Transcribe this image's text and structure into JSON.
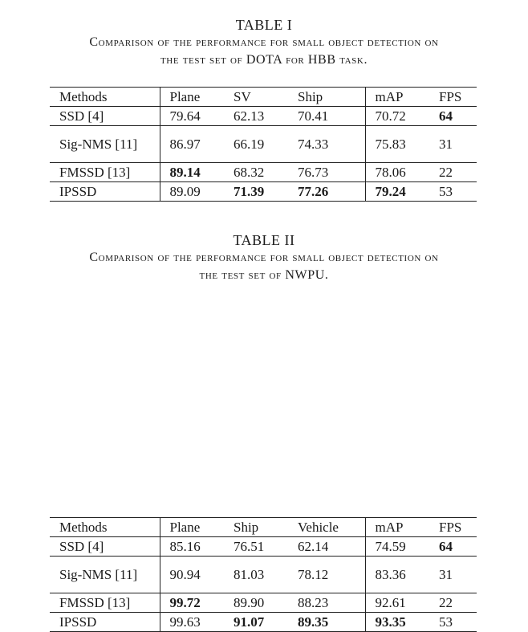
{
  "tables": [
    {
      "number": "TABLE I",
      "caption_line1": "Comparison of the performance for small object detection on",
      "caption_line2": "the test set of DOTA for HBB task.",
      "headers": [
        "Methods",
        "Plane",
        "SV",
        "Ship",
        "mAP",
        "FPS"
      ],
      "rows": [
        [
          "SSD [4]",
          "79.64",
          "62.13",
          "70.41",
          "70.72",
          "64"
        ],
        [
          "Sig-NMS [11]",
          "86.97",
          "66.19",
          "74.33",
          "75.83",
          "31"
        ],
        [
          "FMSSD [13]",
          "89.14",
          "68.32",
          "76.73",
          "78.06",
          "22"
        ],
        [
          "IPSSD",
          "89.09",
          "71.39",
          "77.26",
          "79.24",
          "53"
        ]
      ],
      "bold_cells": [
        [
          0,
          5
        ],
        [
          2,
          1
        ],
        [
          3,
          2
        ],
        [
          3,
          3
        ],
        [
          3,
          4
        ]
      ]
    },
    {
      "number": "TABLE II",
      "caption_line1": "Comparison of the performance for small object detection on",
      "caption_line2": "the test set of NWPU.",
      "headers": [
        "Methods",
        "Plane",
        "Ship",
        "Vehicle",
        "mAP",
        "FPS"
      ],
      "rows": [
        [
          "SSD [4]",
          "85.16",
          "76.51",
          "62.14",
          "74.59",
          "64"
        ],
        [
          "Sig-NMS [11]",
          "90.94",
          "81.03",
          "78.12",
          "83.36",
          "31"
        ],
        [
          "FMSSD [13]",
          "99.72",
          "89.90",
          "88.23",
          "92.61",
          "22"
        ],
        [
          "IPSSD",
          "99.63",
          "91.07",
          "89.35",
          "93.35",
          "53"
        ]
      ],
      "bold_cells": [
        [
          0,
          5
        ],
        [
          2,
          1
        ],
        [
          3,
          2
        ],
        [
          3,
          3
        ],
        [
          3,
          4
        ]
      ]
    }
  ]
}
